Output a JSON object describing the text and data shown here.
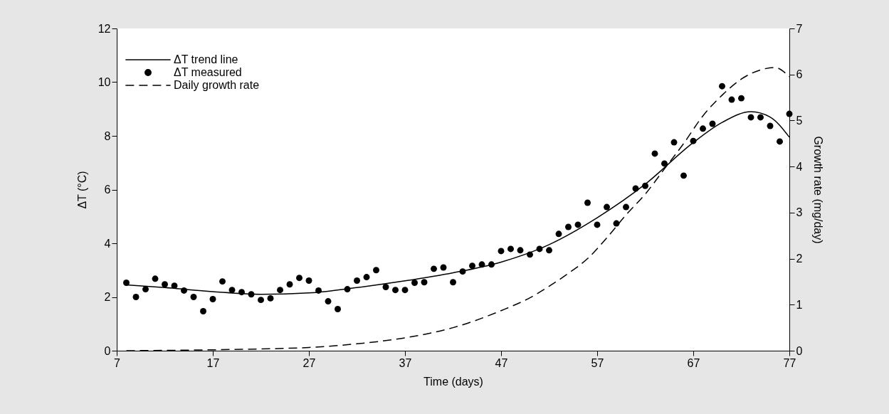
{
  "chart_data": {
    "type": "line",
    "xlabel": "Time (days)",
    "ylabel": "ΔT (°C)",
    "y2label": "Growth rate (mg/day)",
    "xlim": [
      7,
      77
    ],
    "xticks": [
      7,
      17,
      27,
      37,
      47,
      57,
      67,
      77
    ],
    "ylim": [
      0,
      12
    ],
    "yticks": [
      0,
      2,
      4,
      6,
      8,
      10,
      12
    ],
    "y2lim": [
      0,
      7
    ],
    "y2ticks": [
      0,
      1,
      2,
      3,
      4,
      5,
      6,
      7
    ],
    "grid": false,
    "legend": "top left",
    "series": [
      {
        "name": "ΔT trend line",
        "line_style": "solid",
        "color": "#000000",
        "x": [
          8,
          12,
          17,
          22,
          27,
          32,
          37,
          42,
          47,
          52,
          57,
          62,
          67,
          70,
          73,
          75,
          77
        ],
        "values": [
          2.45,
          2.35,
          2.2,
          2.1,
          2.15,
          2.35,
          2.6,
          2.9,
          3.3,
          3.95,
          4.95,
          6.2,
          7.75,
          8.5,
          8.9,
          8.7,
          7.95
        ]
      },
      {
        "name": "ΔT measured",
        "type": "scatter",
        "marker": "circle",
        "color": "#000000",
        "x": [
          8,
          9,
          10,
          11,
          12,
          13,
          14,
          15,
          16,
          17,
          18,
          19,
          20,
          21,
          22,
          23,
          24,
          25,
          26,
          27,
          28,
          29,
          30,
          31,
          32,
          33,
          34,
          35,
          36,
          37,
          38,
          39,
          40,
          41,
          42,
          43,
          44,
          45,
          46,
          47,
          48,
          49,
          50,
          51,
          52,
          53,
          54,
          55,
          56,
          57,
          58,
          59,
          60,
          61,
          62,
          63,
          64,
          65,
          66,
          67,
          68,
          69,
          70,
          71,
          72,
          73,
          74,
          75,
          76,
          77
        ],
        "values": [
          2.53,
          2.0,
          2.29,
          2.68,
          2.47,
          2.42,
          2.24,
          2.0,
          1.47,
          1.92,
          2.58,
          2.26,
          2.18,
          2.1,
          1.89,
          1.95,
          2.26,
          2.47,
          2.71,
          2.61,
          2.24,
          1.84,
          1.55,
          2.29,
          2.61,
          2.74,
          3.0,
          2.37,
          2.26,
          2.26,
          2.53,
          2.55,
          3.05,
          3.1,
          2.55,
          2.95,
          3.16,
          3.21,
          3.21,
          3.71,
          3.79,
          3.74,
          3.58,
          3.79,
          3.74,
          4.35,
          4.61,
          4.69,
          5.51,
          4.69,
          5.35,
          4.74,
          5.35,
          6.04,
          6.14,
          7.34,
          6.97,
          7.76,
          6.52,
          7.81,
          8.27,
          8.45,
          9.85,
          9.35,
          9.4,
          8.69,
          8.69,
          8.37,
          7.79,
          8.82
        ]
      },
      {
        "name": "Daily growth rate",
        "axis": "y2",
        "line_style": "dashed",
        "color": "#000000",
        "x": [
          8,
          17,
          27,
          32,
          37,
          42,
          47,
          50,
          52,
          54,
          56,
          58,
          60,
          62,
          64,
          66,
          68,
          70,
          72,
          74,
          75.5,
          77
        ],
        "values": [
          0,
          0.02,
          0.07,
          0.15,
          0.28,
          0.5,
          0.87,
          1.15,
          1.4,
          1.68,
          2.0,
          2.45,
          2.95,
          3.4,
          3.95,
          4.5,
          5.1,
          5.55,
          5.9,
          6.1,
          6.15,
          5.95
        ]
      }
    ]
  }
}
